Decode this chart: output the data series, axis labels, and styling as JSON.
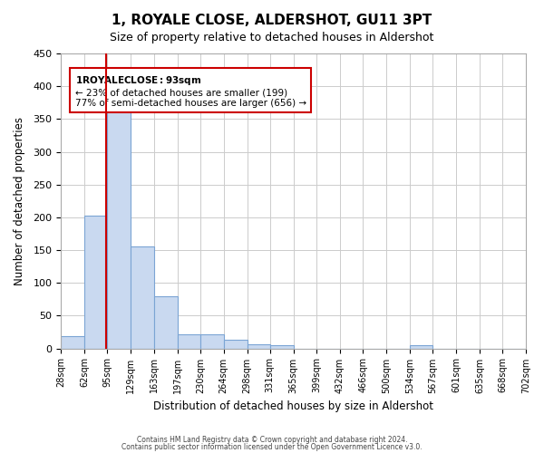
{
  "title": "1, ROYALE CLOSE, ALDERSHOT, GU11 3PT",
  "subtitle": "Size of property relative to detached houses in Aldershot",
  "xlabel": "Distribution of detached houses by size in Aldershot",
  "ylabel": "Number of detached properties",
  "bar_edges": [
    28,
    62,
    95,
    129,
    163,
    197,
    230,
    264,
    298,
    331,
    365,
    399,
    432,
    466,
    500,
    534,
    567,
    601,
    635,
    668,
    702
  ],
  "bar_heights": [
    19,
    203,
    367,
    155,
    79,
    22,
    21,
    13,
    7,
    5,
    0,
    0,
    0,
    0,
    0,
    5,
    0,
    0,
    0,
    0
  ],
  "bar_color": "#c9d9f0",
  "bar_edge_color": "#7ba4d4",
  "property_line_x": 93,
  "property_line_color": "#cc0000",
  "annotation_title": "1 ROYALE CLOSE: 93sqm",
  "annotation_line1": "← 23% of detached houses are smaller (199)",
  "annotation_line2": "77% of semi-detached houses are larger (656) →",
  "annotation_box_color": "#ffffff",
  "annotation_box_edge_color": "#cc0000",
  "ylim": [
    0,
    450
  ],
  "background_color": "#ffffff",
  "grid_color": "#cccccc",
  "footer_line1": "Contains HM Land Registry data © Crown copyright and database right 2024.",
  "footer_line2": "Contains public sector information licensed under the Open Government Licence v3.0."
}
